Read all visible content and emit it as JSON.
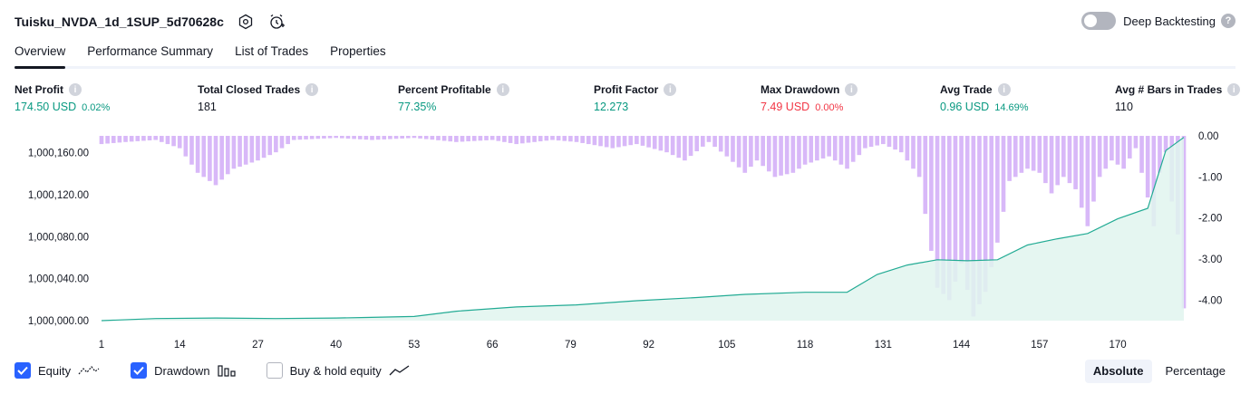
{
  "header": {
    "title": "Tuisku_NVDA_1d_1SUP_5d70628c",
    "settings_icon": "settings-hex-icon",
    "alert_icon": "alarm-add-icon"
  },
  "deep_backtesting": {
    "label": "Deep Backtesting",
    "enabled": false,
    "help": "?"
  },
  "tabs": [
    {
      "label": "Overview",
      "active": true
    },
    {
      "label": "Performance Summary",
      "active": false
    },
    {
      "label": "List of Trades",
      "active": false
    },
    {
      "label": "Properties",
      "active": false
    }
  ],
  "metrics": {
    "net_profit": {
      "label": "Net Profit",
      "value": "174.50 USD",
      "pct": "0.02%"
    },
    "total_closed_trades": {
      "label": "Total Closed Trades",
      "value": "181"
    },
    "percent_profitable": {
      "label": "Percent Profitable",
      "value": "77.35%"
    },
    "profit_factor": {
      "label": "Profit Factor",
      "value": "12.273"
    },
    "max_drawdown": {
      "label": "Max Drawdown",
      "value": "7.49 USD",
      "pct": "0.00%"
    },
    "avg_trade": {
      "label": "Avg Trade",
      "value": "0.96 USD",
      "pct": "14.69%"
    },
    "avg_bars": {
      "label": "Avg # Bars in Trades",
      "value": "110"
    },
    "info_glyph": "i"
  },
  "colors": {
    "equity_line": "#22ab94",
    "equity_fill": "#e0f4ef",
    "drawdown_bar": "#d8b8f8",
    "positive": "#089981",
    "negative": "#f23645",
    "accent": "#2962ff"
  },
  "chart_data": {
    "type": "area",
    "x_ticks": [
      "1",
      "14",
      "27",
      "40",
      "53",
      "66",
      "79",
      "92",
      "105",
      "118",
      "131",
      "144",
      "157",
      "170"
    ],
    "x_range": [
      1,
      181
    ],
    "y_left_ticks": [
      "1,000,000.00",
      "1,000,040.00",
      "1,000,080.00",
      "1,000,120.00",
      "1,000,160.00"
    ],
    "y_left_range": [
      1000000,
      1000176
    ],
    "y_right_ticks": [
      "0.00",
      "-1.00",
      "-2.00",
      "-3.00",
      "-4.00"
    ],
    "y_right_range": [
      0,
      -4.5
    ],
    "grid": false,
    "series": [
      {
        "name": "Equity",
        "type": "area",
        "points": [
          [
            1,
            1000000
          ],
          [
            10,
            1000002
          ],
          [
            20,
            1000002.5
          ],
          [
            30,
            1000002
          ],
          [
            40,
            1000002.5
          ],
          [
            45,
            1000003
          ],
          [
            53,
            1000004
          ],
          [
            60,
            1000009
          ],
          [
            70,
            1000013
          ],
          [
            80,
            1000015
          ],
          [
            90,
            1000019
          ],
          [
            100,
            1000022
          ],
          [
            108,
            1000025
          ],
          [
            118,
            1000027
          ],
          [
            125,
            1000027
          ],
          [
            130,
            1000044
          ],
          [
            135,
            1000053
          ],
          [
            140,
            1000058
          ],
          [
            145,
            1000057
          ],
          [
            150,
            1000058
          ],
          [
            155,
            1000072
          ],
          [
            160,
            1000078
          ],
          [
            165,
            1000083
          ],
          [
            170,
            1000097
          ],
          [
            175,
            1000107
          ],
          [
            178,
            1000162
          ],
          [
            181,
            1000174.5
          ]
        ]
      },
      {
        "name": "Drawdown",
        "type": "bar",
        "points": [
          [
            1,
            -0.2
          ],
          [
            5,
            -0.15
          ],
          [
            10,
            -0.1
          ],
          [
            14,
            -0.3
          ],
          [
            17,
            -0.9
          ],
          [
            20,
            -1.2
          ],
          [
            23,
            -0.8
          ],
          [
            27,
            -0.6
          ],
          [
            30,
            -0.4
          ],
          [
            33,
            -0.1
          ],
          [
            40,
            -0.05
          ],
          [
            46,
            -0.1
          ],
          [
            53,
            -0.05
          ],
          [
            60,
            -0.15
          ],
          [
            66,
            -0.1
          ],
          [
            70,
            -0.2
          ],
          [
            76,
            -0.1
          ],
          [
            80,
            -0.15
          ],
          [
            86,
            -0.3
          ],
          [
            90,
            -0.2
          ],
          [
            95,
            -0.4
          ],
          [
            98,
            -0.6
          ],
          [
            102,
            -0.15
          ],
          [
            105,
            -0.5
          ],
          [
            108,
            -0.9
          ],
          [
            110,
            -0.6
          ],
          [
            113,
            -1.0
          ],
          [
            116,
            -0.9
          ],
          [
            118,
            -0.7
          ],
          [
            122,
            -0.5
          ],
          [
            125,
            -0.8
          ],
          [
            128,
            -0.3
          ],
          [
            131,
            -0.2
          ],
          [
            134,
            -0.4
          ],
          [
            137,
            -1.0
          ],
          [
            140,
            -3.7
          ],
          [
            142,
            -4.0
          ],
          [
            144,
            -3.1
          ],
          [
            146,
            -4.4
          ],
          [
            148,
            -3.8
          ],
          [
            150,
            -2.6
          ],
          [
            152,
            -1.1
          ],
          [
            155,
            -0.8
          ],
          [
            157,
            -0.9
          ],
          [
            159,
            -1.4
          ],
          [
            161,
            -1.0
          ],
          [
            163,
            -1.3
          ],
          [
            165,
            -2.2
          ],
          [
            167,
            -1.0
          ],
          [
            169,
            -0.6
          ],
          [
            171,
            -0.8
          ],
          [
            173,
            -0.3
          ],
          [
            175,
            -1.5
          ],
          [
            176,
            -2.2
          ],
          [
            177,
            -0.9
          ],
          [
            178,
            -0.4
          ],
          [
            179,
            -1.6
          ],
          [
            180,
            -2.4
          ],
          [
            181,
            -4.2
          ]
        ]
      },
      {
        "name": "Buy & hold equity",
        "type": "line",
        "points": []
      }
    ]
  },
  "legend": {
    "equity": {
      "label": "Equity",
      "checked": true
    },
    "drawdown": {
      "label": "Drawdown",
      "checked": true
    },
    "buy_hold": {
      "label": "Buy & hold equity",
      "checked": false
    }
  },
  "mode": {
    "absolute": "Absolute",
    "percentage": "Percentage",
    "selected": "absolute"
  }
}
